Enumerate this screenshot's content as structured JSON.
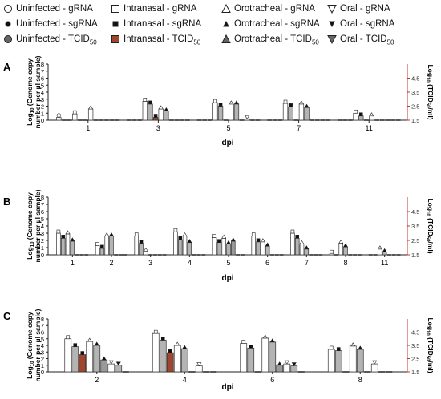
{
  "legend": {
    "items": [
      {
        "text": "Uninfected - gRNA",
        "icon": "hollow-circle-icon"
      },
      {
        "text": "Intranasal - gRNA",
        "icon": "hollow-square-icon"
      },
      {
        "text": "Orotracheal - gRNA",
        "icon": "hollow-up-triangle-icon"
      },
      {
        "text": "Oral - gRNA",
        "icon": "hollow-down-triangle-icon"
      },
      {
        "text": "Uninfected - sgRNA",
        "icon": "filled-small-circle-icon"
      },
      {
        "text": "Intranasal - sgRNA",
        "icon": "filled-small-square-icon"
      },
      {
        "text": "Orotracheal - sgRNA",
        "icon": "filled-small-up-triangle-icon"
      },
      {
        "text": "Oral - sgRNA",
        "icon": "filled-small-down-triangle-icon"
      },
      {
        "text": "Uninfected - TCID",
        "sub": "50",
        "icon": "grey-circle-icon"
      },
      {
        "text": "Intranasal - TCID",
        "sub": "50",
        "icon": "brown-square-icon"
      },
      {
        "text": "Orotracheal - TCID",
        "sub": "50",
        "icon": "grey-up-triangle-icon"
      },
      {
        "text": "Oral - TCID",
        "sub": "50",
        "icon": "grey-down-triangle-icon"
      }
    ]
  },
  "colors": {
    "gRNA_bar": "#ffffff",
    "sgRNA_bar": "#b4b4b4",
    "tcid_bar": "#9a9a9a",
    "intranasal_tcid_bar": "#a0452e",
    "right_axis": "#c0392b",
    "axis": "#222222"
  },
  "chart_data": [
    {
      "panel": "A",
      "type": "bar",
      "xlabel": "dpi",
      "ylabel_left": "Log10 (Genome copy number per µl sample)",
      "ylabel_right": "Log10 (TCID50/ml)",
      "yticks_left": [
        0,
        1,
        2,
        3,
        4,
        5,
        6,
        7,
        8
      ],
      "yticks_right": [
        "1.5",
        "2.5",
        "3.5",
        "4.5"
      ],
      "ylim_left": [
        0,
        8
      ],
      "ylim_right": [
        1.5,
        5.5
      ],
      "groups": [
        "1",
        "3",
        "5",
        "7",
        "11"
      ],
      "series": [
        {
          "name": "Uninfected - gRNA",
          "values": [
            0.4,
            0,
            0,
            0,
            0
          ]
        },
        {
          "name": "Uninfected - sgRNA",
          "values": [
            0,
            0,
            0,
            0,
            0
          ]
        },
        {
          "name": "Uninfected - TCID50",
          "values": [
            0,
            0,
            0,
            0,
            0
          ]
        },
        {
          "name": "Intranasal - gRNA",
          "values": [
            0.9,
            2.7,
            2.5,
            2.4,
            1.0
          ]
        },
        {
          "name": "Intranasal - sgRNA",
          "values": [
            0,
            2.3,
            2.0,
            1.9,
            0.6
          ]
        },
        {
          "name": "Intranasal - TCID50",
          "values": [
            0,
            0.4,
            0,
            0,
            0
          ]
        },
        {
          "name": "Orotracheal - gRNA",
          "values": [
            1.6,
            1.6,
            2.3,
            2.3,
            0.6
          ]
        },
        {
          "name": "Orotracheal - sgRNA",
          "values": [
            0,
            1.3,
            2.3,
            1.8,
            0
          ]
        },
        {
          "name": "Orotracheal - TCID50",
          "values": [
            0,
            0,
            0,
            0,
            0
          ]
        },
        {
          "name": "Oral - gRNA",
          "values": [
            0,
            0,
            0.2,
            0,
            0
          ]
        },
        {
          "name": "Oral - sgRNA",
          "values": [
            0,
            0,
            0,
            0,
            0
          ]
        },
        {
          "name": "Oral - TCID50",
          "values": [
            0,
            0,
            0,
            0,
            0
          ]
        }
      ]
    },
    {
      "panel": "B",
      "type": "bar",
      "xlabel": "dpi",
      "ylabel_left": "Log10 (Genome copy number per µl sample)",
      "ylabel_right": "Log10 (TCID50/ml)",
      "yticks_left": [
        0,
        1,
        2,
        3,
        4,
        5,
        6,
        7,
        8
      ],
      "yticks_right": [
        "1.5",
        "2.5",
        "3.5",
        "4.5"
      ],
      "ylim_left": [
        0,
        8
      ],
      "ylim_right": [
        1.5,
        5.5
      ],
      "groups": [
        "1",
        "2",
        "3",
        "4",
        "5",
        "6",
        "7",
        "8",
        "11"
      ],
      "series": [
        {
          "name": "Intranasal - gRNA",
          "values": [
            3.0,
            1.3,
            2.6,
            3.2,
            2.4,
            2.6,
            3.0,
            0.2,
            0
          ]
        },
        {
          "name": "Intranasal - sgRNA",
          "values": [
            2.3,
            0.9,
            1.6,
            2.1,
            1.7,
            1.8,
            2.3,
            0,
            0
          ]
        },
        {
          "name": "Orotracheal - gRNA",
          "values": [
            2.9,
            2.6,
            0.5,
            2.6,
            2.3,
            1.8,
            1.5,
            1.6,
            0.8
          ]
        },
        {
          "name": "Orotracheal - sgRNA",
          "values": [
            1.9,
            2.6,
            0,
            1.7,
            1.5,
            1.2,
            0.8,
            1.1,
            0.4
          ]
        },
        {
          "name": "Orotracheal - TCID50",
          "values": [
            0,
            0,
            0,
            0,
            1.9,
            0,
            0,
            0,
            0
          ]
        },
        {
          "name": "Oral - gRNA",
          "values": [
            0,
            0,
            0,
            0,
            0,
            0,
            0,
            0,
            0
          ]
        },
        {
          "name": "Oral - sgRNA",
          "values": [
            0,
            0,
            0,
            0,
            0,
            0,
            0,
            0,
            0
          ]
        }
      ]
    },
    {
      "panel": "C",
      "type": "bar",
      "xlabel": "dpi",
      "ylabel_left": "Log10 (Genome copy number per µl sample)",
      "ylabel_right": "Log10 (TCID50/ml)",
      "yticks_left": [
        0,
        1,
        2,
        3,
        4,
        5,
        6,
        7,
        8
      ],
      "yticks_right": [
        "1.5",
        "2.5",
        "3.5",
        "4.5"
      ],
      "ylim_left": [
        0,
        8
      ],
      "ylim_right": [
        1.5,
        5.5
      ],
      "groups": [
        "2",
        "4",
        "6",
        "8"
      ],
      "series": [
        {
          "name": "Intranasal - gRNA",
          "values": [
            5.0,
            5.8,
            4.3,
            3.4
          ]
        },
        {
          "name": "Intranasal - sgRNA",
          "values": [
            3.8,
            4.8,
            3.6,
            3.2
          ]
        },
        {
          "name": "Intranasal - TCID50",
          "values": [
            2.6,
            2.9,
            0,
            0
          ]
        },
        {
          "name": "Orotracheal - gRNA",
          "values": [
            4.6,
            4.0,
            5.1,
            3.9
          ]
        },
        {
          "name": "Orotracheal - sgRNA",
          "values": [
            4.0,
            3.5,
            4.5,
            3.4
          ]
        },
        {
          "name": "Orotracheal - TCID50",
          "values": [
            1.8,
            0,
            1.0,
            0
          ]
        },
        {
          "name": "Oral - gRNA",
          "values": [
            1.2,
            0.9,
            1.2,
            1.2
          ]
        },
        {
          "name": "Oral - sgRNA",
          "values": [
            1.0,
            0,
            0.9,
            0
          ]
        },
        {
          "name": "Oral - TCID50",
          "values": [
            0,
            0,
            0,
            0
          ]
        }
      ]
    }
  ]
}
